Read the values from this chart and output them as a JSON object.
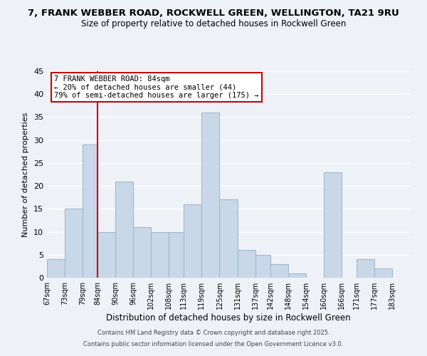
{
  "title": "7, FRANK WEBBER ROAD, ROCKWELL GREEN, WELLINGTON, TA21 9RU",
  "subtitle": "Size of property relative to detached houses in Rockwell Green",
  "xlabel": "Distribution of detached houses by size in Rockwell Green",
  "ylabel": "Number of detached properties",
  "bar_edges": [
    67,
    73,
    79,
    84,
    90,
    96,
    102,
    108,
    113,
    119,
    125,
    131,
    137,
    142,
    148,
    154,
    160,
    166,
    171,
    177,
    183,
    189
  ],
  "bar_heights": [
    4,
    15,
    29,
    10,
    21,
    11,
    10,
    10,
    16,
    36,
    17,
    6,
    5,
    3,
    1,
    0,
    23,
    0,
    4,
    2,
    0
  ],
  "bar_color": "#c8d8e8",
  "bar_edgecolor": "#a0b8cc",
  "tick_labels": [
    "67sqm",
    "73sqm",
    "79sqm",
    "84sqm",
    "90sqm",
    "96sqm",
    "102sqm",
    "108sqm",
    "113sqm",
    "119sqm",
    "125sqm",
    "131sqm",
    "137sqm",
    "142sqm",
    "148sqm",
    "154sqm",
    "160sqm",
    "166sqm",
    "171sqm",
    "177sqm",
    "183sqm"
  ],
  "vline_x": 84,
  "vline_color": "#cc0000",
  "ylim": [
    0,
    45
  ],
  "yticks": [
    0,
    5,
    10,
    15,
    20,
    25,
    30,
    35,
    40,
    45
  ],
  "annotation_title": "7 FRANK WEBBER ROAD: 84sqm",
  "annotation_line1": "← 20% of detached houses are smaller (44)",
  "annotation_line2": "79% of semi-detached houses are larger (175) →",
  "footer1": "Contains HM Land Registry data © Crown copyright and database right 2025.",
  "footer2": "Contains public sector information licensed under the Open Government Licence v3.0.",
  "background_color": "#eef2f7",
  "grid_color": "#ffffff",
  "title_fontsize": 9.5,
  "subtitle_fontsize": 8.5,
  "annotation_box_color": "#ffffff",
  "annotation_box_edgecolor": "#cc0000"
}
